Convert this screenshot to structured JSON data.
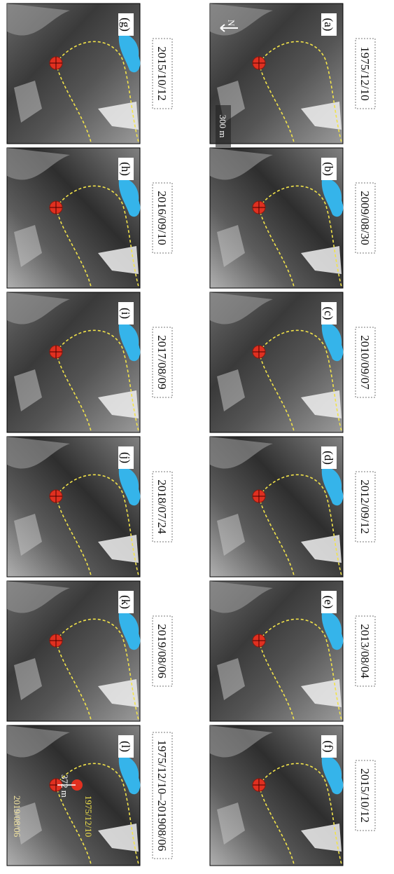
{
  "panels": [
    {
      "label": "(a)",
      "date": "1975/12/10"
    },
    {
      "label": "(b)",
      "date": "2009/08/30"
    },
    {
      "label": "(c)",
      "date": "2010/09/07"
    },
    {
      "label": "(d)",
      "date": "2012/09/12"
    },
    {
      "label": "(e)",
      "date": "2013/08/04"
    },
    {
      "label": "(f)",
      "date": "2015/10/12"
    },
    {
      "label": "(g)",
      "date": "2015/10/12"
    },
    {
      "label": "(h)",
      "date": "2016/09/10"
    },
    {
      "label": "(i)",
      "date": "2017/08/09"
    },
    {
      "label": "(j)",
      "date": "2018/07/24"
    },
    {
      "label": "(k)",
      "date": "2019/08/06"
    },
    {
      "label": "(l)",
      "date": "1975/12/10–201908/06"
    }
  ],
  "scale_bar": "300 m",
  "north": "N",
  "annotations": {
    "distance": "372 m",
    "new_date": "2019/08/06",
    "old_date": "1975/12/10"
  }
}
